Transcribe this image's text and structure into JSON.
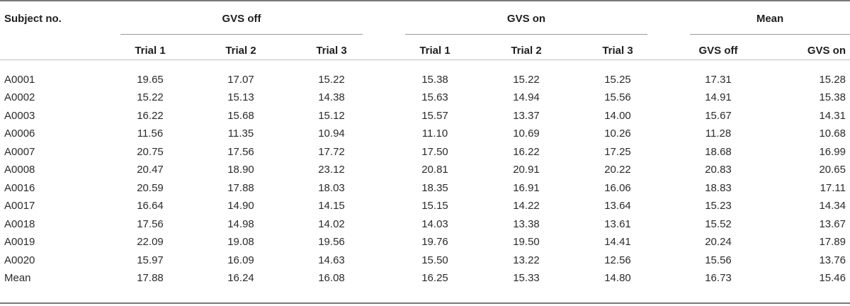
{
  "table": {
    "subject_header": "Subject no.",
    "groups": [
      {
        "label": "GVS off"
      },
      {
        "label": "GVS on"
      },
      {
        "label": "Mean"
      }
    ],
    "sub_headers": [
      "Trial 1",
      "Trial 2",
      "Trial 3",
      "Trial 1",
      "Trial 2",
      "Trial 3",
      "GVS off",
      "GVS on"
    ],
    "rows": [
      {
        "subject": "A0001",
        "values": [
          "19.65",
          "17.07",
          "15.22",
          "15.38",
          "15.22",
          "15.25",
          "17.31",
          "15.28"
        ]
      },
      {
        "subject": "A0002",
        "values": [
          "15.22",
          "15.13",
          "14.38",
          "15.63",
          "14.94",
          "15.56",
          "14.91",
          "15.38"
        ]
      },
      {
        "subject": "A0003",
        "values": [
          "16.22",
          "15.68",
          "15.12",
          "15.57",
          "13.37",
          "14.00",
          "15.67",
          "14.31"
        ]
      },
      {
        "subject": "A0006",
        "values": [
          "11.56",
          "11.35",
          "10.94",
          "11.10",
          "10.69",
          "10.26",
          "11.28",
          "10.68"
        ]
      },
      {
        "subject": "A0007",
        "values": [
          "20.75",
          "17.56",
          "17.72",
          "17.50",
          "16.22",
          "17.25",
          "18.68",
          "16.99"
        ]
      },
      {
        "subject": "A0008",
        "values": [
          "20.47",
          "18.90",
          "23.12",
          "20.81",
          "20.91",
          "20.22",
          "20.83",
          "20.65"
        ]
      },
      {
        "subject": "A0016",
        "values": [
          "20.59",
          "17.88",
          "18.03",
          "18.35",
          "16.91",
          "16.06",
          "18.83",
          "17.11"
        ]
      },
      {
        "subject": "A0017",
        "values": [
          "16.64",
          "14.90",
          "14.15",
          "15.15",
          "14.22",
          "13.64",
          "15.23",
          "14.34"
        ]
      },
      {
        "subject": "A0018",
        "values": [
          "17.56",
          "14.98",
          "14.02",
          "14.03",
          "13.38",
          "13.61",
          "15.52",
          "13.67"
        ]
      },
      {
        "subject": "A0019",
        "values": [
          "22.09",
          "19.08",
          "19.56",
          "19.76",
          "19.50",
          "14.41",
          "20.24",
          "17.89"
        ]
      },
      {
        "subject": "A0020",
        "values": [
          "15.97",
          "16.09",
          "14.63",
          "15.50",
          "13.22",
          "12.56",
          "15.56",
          "13.76"
        ]
      },
      {
        "subject": "Mean",
        "values": [
          "17.88",
          "16.24",
          "16.08",
          "16.25",
          "15.33",
          "14.80",
          "16.73",
          "15.46"
        ]
      }
    ]
  }
}
